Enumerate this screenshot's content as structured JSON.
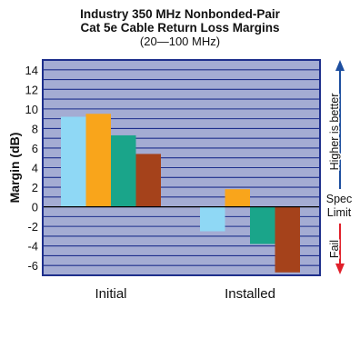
{
  "chart_data": {
    "type": "bar",
    "title": "Industry 350 MHz Nonbonded-Pair",
    "title_line2": "Cat 5e Cable Return Loss Margins",
    "subtitle": "(20—100 MHz)",
    "ylabel": "Margin (dB)",
    "ylim": [
      -7,
      15
    ],
    "yticks": [
      14,
      12,
      10,
      8,
      6,
      4,
      2,
      0,
      -2,
      -4,
      -6
    ],
    "grid": true,
    "categories": [
      "Initial",
      "Installed"
    ],
    "series": [
      {
        "color": "#8fd8f5",
        "values": [
          9.2,
          -2.5
        ]
      },
      {
        "color": "#f9a51b",
        "values": [
          9.5,
          1.8
        ]
      },
      {
        "color": "#1aa58a",
        "values": [
          7.3,
          -3.8
        ]
      },
      {
        "color": "#a5421b",
        "values": [
          5.4,
          -6.7
        ]
      }
    ],
    "annotations": {
      "better": "Higher is better",
      "spec_line1": "Spec",
      "spec_line2": "Limit",
      "fail": "Fail"
    },
    "colors": {
      "plot_background": "#a4acd3",
      "grid_line": "#1e2f8c",
      "frame": "#1e2f8c",
      "zero_line": "#000000",
      "up_arrow": "#1e4f9f",
      "down_arrow": "#e0202a"
    }
  }
}
